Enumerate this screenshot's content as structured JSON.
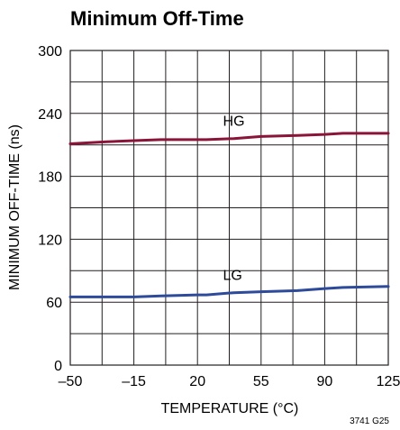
{
  "chart_data": {
    "type": "line",
    "title": "Minimum Off-Time",
    "xlabel": "TEMPERATURE (°C)",
    "ylabel": "MINIMUM OFF-TIME (ns)",
    "xlim": [
      -50,
      125
    ],
    "ylim": [
      0,
      300
    ],
    "xticks": [
      -50,
      -15,
      20,
      55,
      90,
      125
    ],
    "xtick_labels": [
      "–50",
      "–15",
      "20",
      "55",
      "90",
      "125"
    ],
    "yticks": [
      0,
      60,
      120,
      180,
      240,
      300
    ],
    "ytick_labels": [
      "0",
      "60",
      "120",
      "180",
      "240",
      "300"
    ],
    "grid": true,
    "series": [
      {
        "name": "HG",
        "color": "#8b1538",
        "x": [
          -50,
          -30,
          -15,
          0,
          20,
          25,
          40,
          55,
          75,
          90,
          100,
          125
        ],
        "y": [
          211,
          213,
          214,
          215,
          215,
          215,
          216,
          218,
          219,
          220,
          221,
          221
        ]
      },
      {
        "name": "LG",
        "color": "#2e4a9a",
        "x": [
          -50,
          -30,
          -15,
          0,
          20,
          25,
          40,
          55,
          75,
          90,
          100,
          125
        ],
        "y": [
          65,
          65,
          65,
          66,
          67,
          67,
          69,
          70,
          71,
          73,
          74,
          75
        ]
      }
    ],
    "figure_code": "3741 G25"
  }
}
